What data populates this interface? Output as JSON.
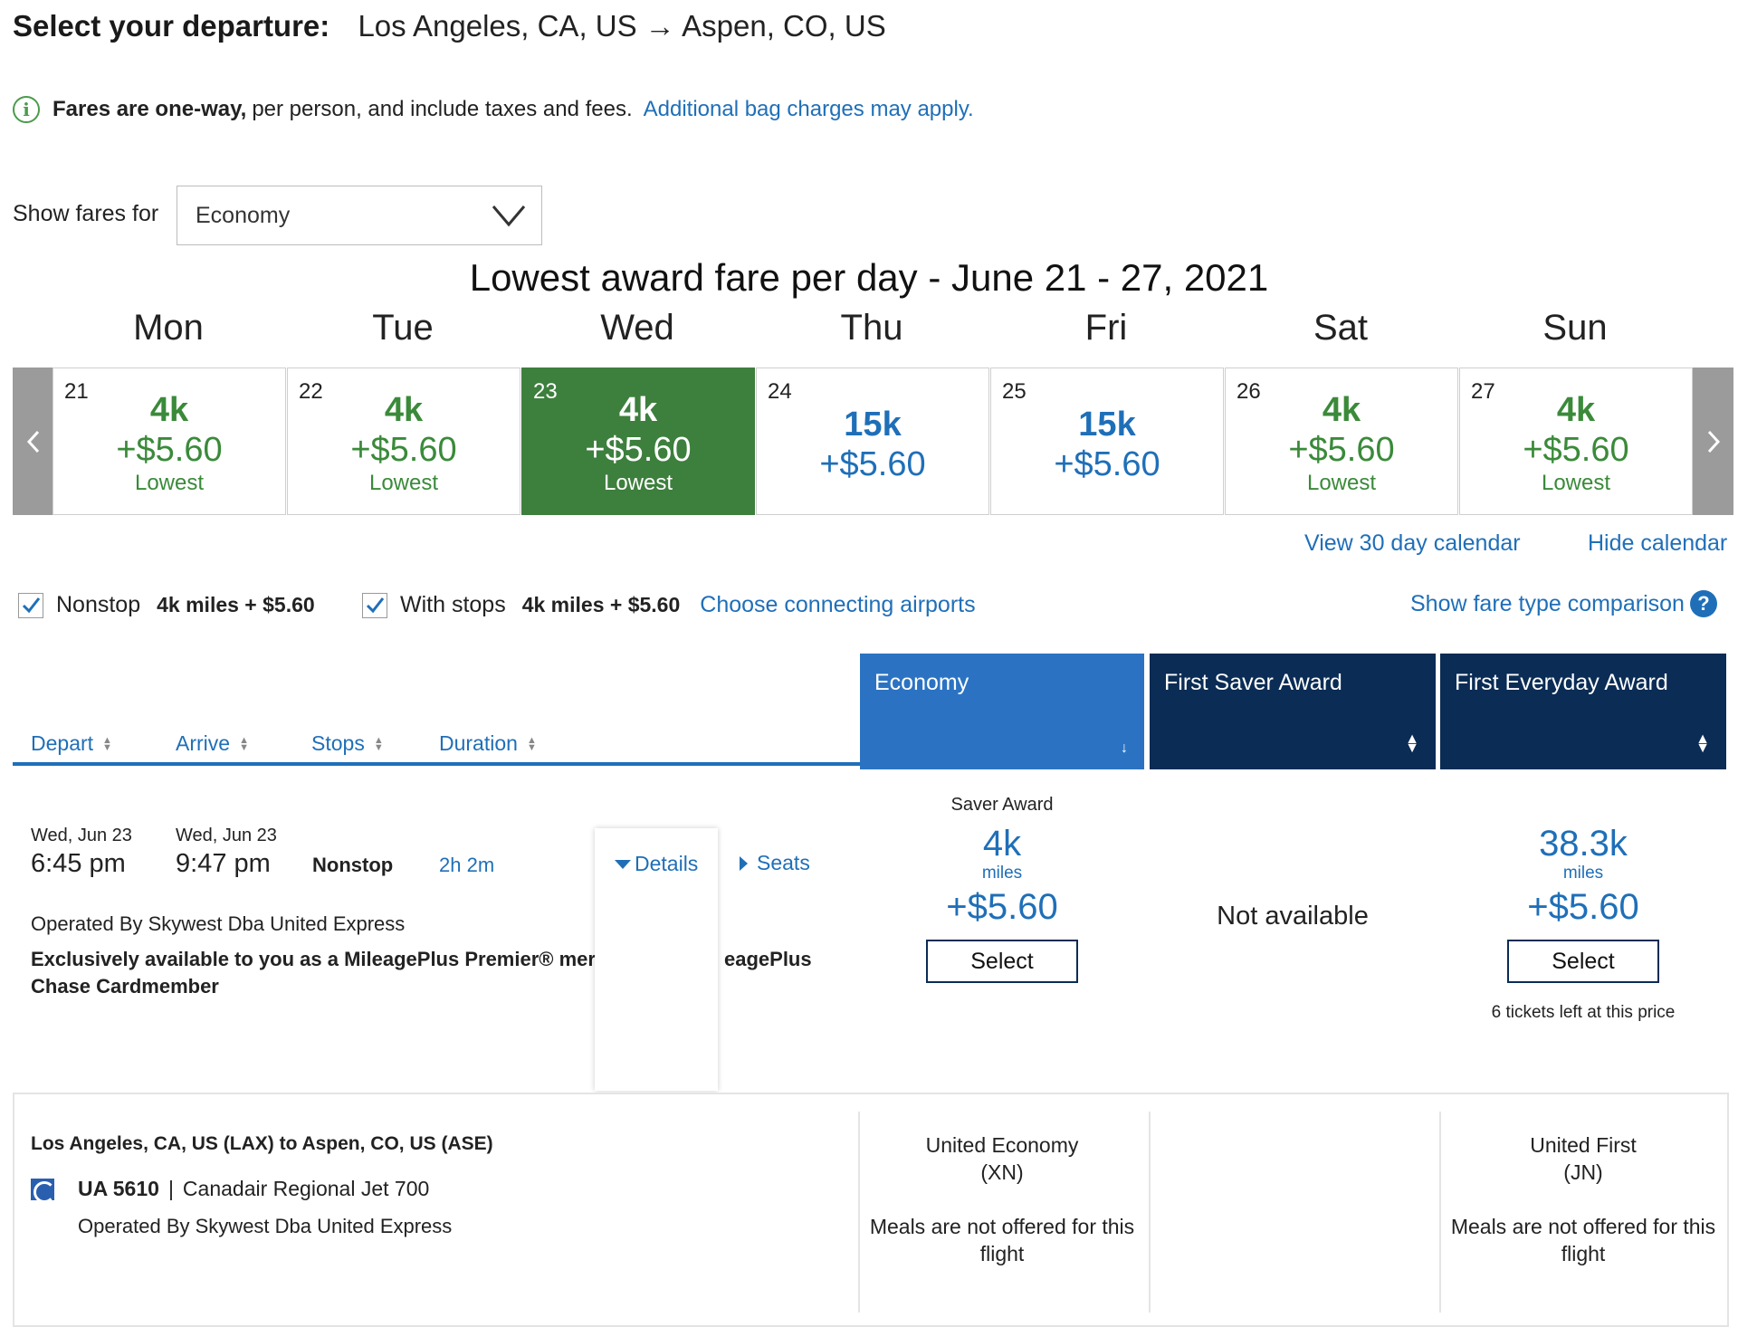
{
  "header": {
    "label": "Select your departure:",
    "route": "Los Angeles, CA, US → Aspen, CO, US"
  },
  "notice": {
    "bold": "Fares are one-way,",
    "text": "per person, and include taxes and fees.",
    "link": "Additional bag charges may apply."
  },
  "fare_filter": {
    "label": "Show fares for",
    "selected": "Economy"
  },
  "calendar": {
    "title": "Lowest award fare per day - June 21 - 27, 2021",
    "days": [
      {
        "name": "Mon",
        "date": "21",
        "miles": "4k",
        "price": "+$5.60",
        "tag": "Lowest"
      },
      {
        "name": "Tue",
        "date": "22",
        "miles": "4k",
        "price": "+$5.60",
        "tag": "Lowest"
      },
      {
        "name": "Wed",
        "date": "23",
        "miles": "4k",
        "price": "+$5.60",
        "tag": "Lowest"
      },
      {
        "name": "Thu",
        "date": "24",
        "miles": "15k",
        "price": "+$5.60",
        "tag": ""
      },
      {
        "name": "Fri",
        "date": "25",
        "miles": "15k",
        "price": "+$5.60",
        "tag": ""
      },
      {
        "name": "Sat",
        "date": "26",
        "miles": "4k",
        "price": "+$5.60",
        "tag": "Lowest"
      },
      {
        "name": "Sun",
        "date": "27",
        "miles": "4k",
        "price": "+$5.60",
        "tag": "Lowest"
      }
    ],
    "view_30": "View 30 day calendar",
    "hide": "Hide calendar"
  },
  "filters": {
    "nonstop_label": "Nonstop",
    "nonstop_value": "4k miles + $5.60",
    "stops_label": "With stops",
    "stops_value": "4k miles + $5.60",
    "connecting_link": "Choose connecting airports",
    "comparison_link": "Show fare type comparison"
  },
  "columns": {
    "depart": "Depart",
    "arrive": "Arrive",
    "stops": "Stops",
    "duration": "Duration",
    "cabins": [
      "Economy",
      "First Saver Award",
      "First Everyday Award"
    ]
  },
  "flight": {
    "depart_date": "Wed, Jun 23",
    "depart_time": "6:45 pm",
    "arrive_date": "Wed, Jun 23",
    "arrive_time": "9:47 pm",
    "stops": "Nonstop",
    "duration": "2h 2m",
    "details": "Details",
    "seats": "Seats",
    "operated": "Operated By Skywest Dba United Express",
    "exclusive_line1": "Exclusively available to you as a MileagePlus Premier® mer",
    "exclusive_line1b": "eagePlus",
    "exclusive_line2": "Chase Cardmember",
    "economy": {
      "badge": "Saver Award",
      "miles": "4k",
      "unit": "miles",
      "price": "+$5.60",
      "button": "Select"
    },
    "first_saver": {
      "status": "Not available"
    },
    "first_everyday": {
      "miles": "38.3k",
      "unit": "miles",
      "price": "+$5.60",
      "button": "Select",
      "note": "6 tickets left at this price"
    }
  },
  "segment": {
    "route": "Los Angeles, CA, US (LAX) to Aspen, CO, US (ASE)",
    "flight_no": "UA 5610",
    "aircraft": "Canadair Regional Jet 700",
    "operated": "Operated By Skywest Dba United Express",
    "economy_cabin": "United Economy",
    "economy_code": "(XN)",
    "economy_meal": "Meals are not offered for this flight",
    "first_cabin": "United First",
    "first_code": "(JN)",
    "first_meal": "Meals are not offered for this flight"
  },
  "colors": {
    "accent": "#1f6fb8",
    "selected_day": "#3d7f3d",
    "lowest": "#3a8a3a",
    "cabin_dark": "#0a2c55"
  }
}
